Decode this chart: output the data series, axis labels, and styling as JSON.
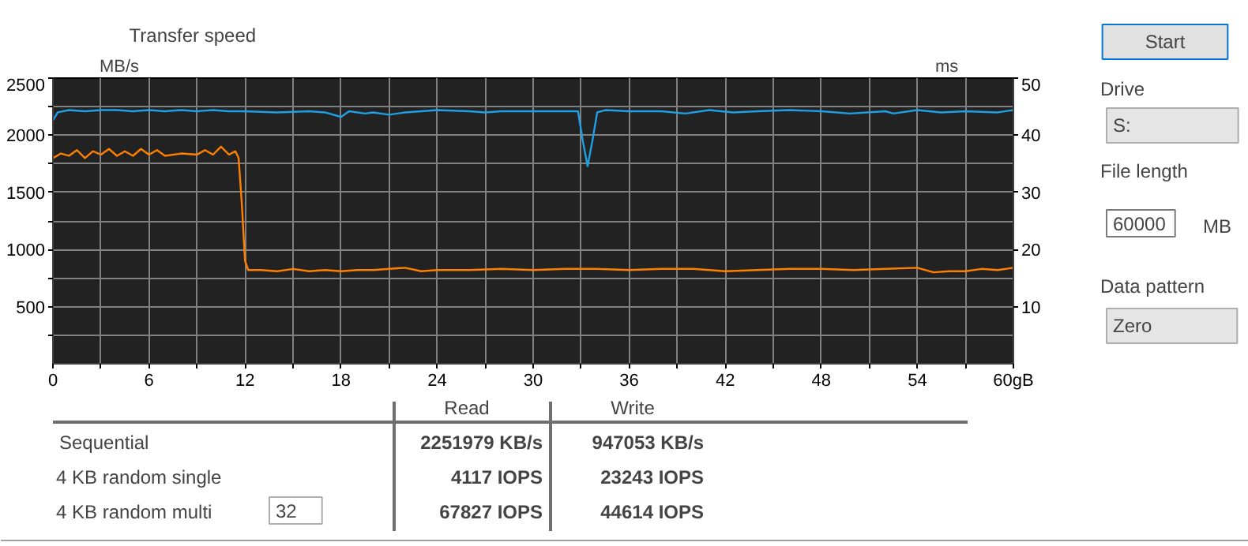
{
  "chart_data": [
    {
      "type": "line",
      "ylabel": "MB/s",
      "y2label": "ms",
      "xlim": [
        0,
        60
      ],
      "ylim": [
        0,
        2500
      ],
      "y2lim": [
        0,
        50
      ],
      "xticks": [
        0,
        {
          "value": 3,
          "label": null
        },
        6,
        {
          "value": 9,
          "label": null
        },
        12,
        {
          "value": 15,
          "label": null
        },
        18,
        {
          "value": 21,
          "label": null
        },
        24,
        {
          "value": 27,
          "label": null
        },
        30,
        {
          "value": 33,
          "label": null
        },
        36,
        {
          "value": 39,
          "label": null
        },
        42,
        {
          "value": 45,
          "label": null
        },
        48,
        {
          "value": 51,
          "label": null
        },
        54,
        {
          "value": 57,
          "label": null
        },
        {
          "value": 60,
          "label": "60gB"
        }
      ],
      "yticks": [
        {
          "value": 250,
          "label": null
        },
        500,
        {
          "value": 750,
          "label": null
        },
        1000,
        {
          "value": 1250,
          "label": null
        },
        1500,
        {
          "value": 1750,
          "label": null
        },
        2000,
        {
          "value": 2250,
          "label": null
        },
        2500
      ],
      "y2ticks": [
        10,
        20,
        30,
        40,
        50
      ],
      "grid": true,
      "series": [
        {
          "color": "#1ea0e6",
          "x": [
            0,
            0.3,
            1,
            2,
            3,
            4,
            5,
            6,
            7,
            8,
            9,
            10,
            11,
            12,
            14,
            16,
            17,
            18,
            18.5,
            19.5,
            20,
            21,
            22,
            24,
            26,
            27,
            28,
            30,
            32,
            32.8,
            33.1,
            33.4,
            33.7,
            34,
            34.5,
            36,
            38,
            39.5,
            41,
            42.5,
            44,
            46,
            48,
            49.8,
            52,
            52.5,
            54,
            55.5,
            57,
            59,
            60
          ],
          "values": [
            2130,
            2200,
            2220,
            2210,
            2220,
            2220,
            2210,
            2220,
            2210,
            2220,
            2210,
            2220,
            2210,
            2210,
            2200,
            2210,
            2200,
            2160,
            2210,
            2190,
            2200,
            2180,
            2200,
            2220,
            2210,
            2200,
            2210,
            2210,
            2210,
            2210,
            1950,
            1730,
            1950,
            2200,
            2220,
            2210,
            2210,
            2190,
            2220,
            2200,
            2210,
            2220,
            2210,
            2190,
            2210,
            2190,
            2220,
            2200,
            2210,
            2200,
            2220
          ]
        },
        {
          "color": "#ff8000",
          "x": [
            0,
            0.5,
            1,
            1.5,
            2,
            2.5,
            3,
            3.5,
            4,
            4.5,
            5,
            5.5,
            6,
            6.5,
            7,
            8,
            9,
            9.5,
            10,
            10.5,
            11,
            11.4,
            11.6,
            11.8,
            12,
            12.2,
            13,
            14,
            15,
            16,
            17,
            18,
            19,
            20,
            21,
            22,
            23,
            24,
            26,
            28,
            30,
            32,
            34,
            36,
            38,
            40,
            42,
            44,
            46,
            48,
            50,
            52,
            54,
            55,
            56,
            57,
            58,
            59,
            60
          ],
          "values": [
            1800,
            1840,
            1820,
            1870,
            1800,
            1860,
            1830,
            1880,
            1820,
            1860,
            1820,
            1880,
            1830,
            1870,
            1820,
            1840,
            1830,
            1870,
            1830,
            1900,
            1830,
            1860,
            1800,
            1400,
            900,
            820,
            820,
            810,
            830,
            810,
            820,
            810,
            820,
            820,
            830,
            840,
            810,
            820,
            820,
            830,
            820,
            830,
            830,
            820,
            830,
            830,
            810,
            820,
            830,
            830,
            820,
            830,
            840,
            800,
            810,
            810,
            830,
            820,
            840
          ]
        }
      ]
    },
    {
      "type": "other",
      "annotations": [
        "Transfer speed",
        "Read",
        "Write",
        "Sequential",
        "2251979 KB/s",
        "947053 KB/s",
        "4 KB random single",
        "4117 IOPS",
        "23243 IOPS",
        "4 KB random multi",
        "32",
        "67827 IOPS",
        "44614 IOPS",
        "Start",
        "Drive",
        "S:",
        "File length",
        "60000",
        "MB",
        "Data pattern",
        "Zero"
      ]
    }
  ]
}
